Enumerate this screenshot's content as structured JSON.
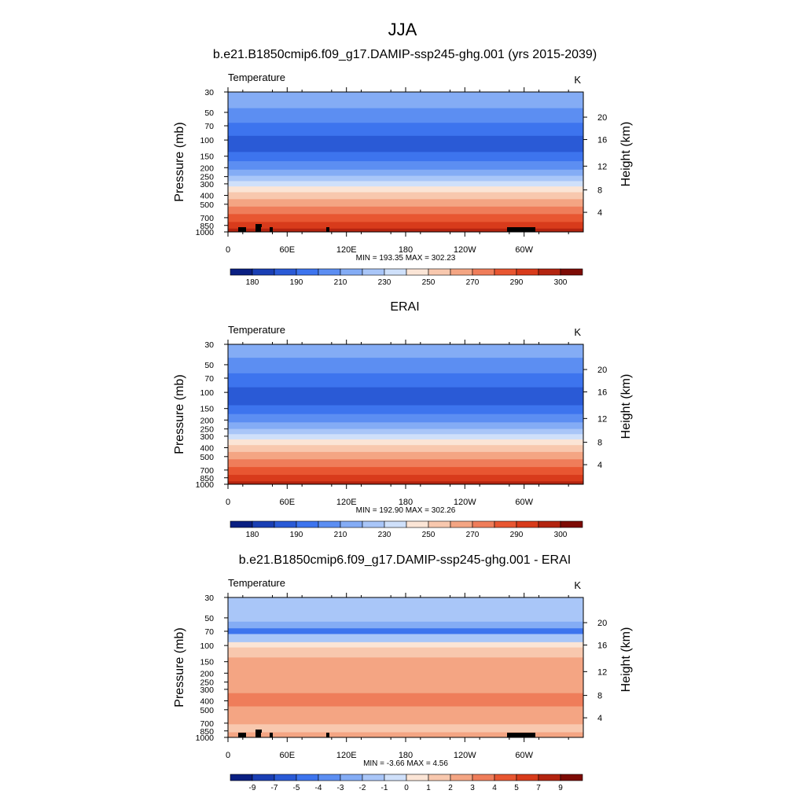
{
  "page": {
    "title": "JJA",
    "subtitles": [
      "b.e21.B1850cmip6.f09_g17.DAMIP-ssp245-ghg.001 (yrs 2015-2039)",
      "ERAI",
      "b.e21.B1850cmip6.f09_g17.DAMIP-ssp245-ghg.001 - ERAI"
    ]
  },
  "chart_data": [
    {
      "type": "heatmap",
      "title": "b.e21.B1850cmip6.f09_g17.DAMIP-ssp245-ghg.001 (yrs 2015-2039)",
      "left_label": "Temperature",
      "right_label": "K",
      "xlabel": "",
      "ylabel": "Pressure (mb)",
      "y2label": "Height (km)",
      "x_ticks": [
        "0",
        "60E",
        "120E",
        "180",
        "120W",
        "60W"
      ],
      "y_ticks": [
        "30",
        "50",
        "70",
        "100",
        "150",
        "200",
        "250",
        "300",
        "400",
        "500",
        "700",
        "850",
        "1000"
      ],
      "y2_ticks": [
        "20",
        "16",
        "12",
        "8",
        "4"
      ],
      "stats": "MIN = 193.35  MAX = 302.23",
      "colorbar_labels": [
        "180",
        "190",
        "210",
        "230",
        "250",
        "270",
        "290",
        "300"
      ],
      "colors": [
        "#0a1f82",
        "#1a3fb4",
        "#2a5ad6",
        "#3d74ee",
        "#5c8ef2",
        "#84acf5",
        "#a9c6f8",
        "#cfe0fa",
        "#fbe5d6",
        "#f8c8ae",
        "#f4a583",
        "#ef7d5a",
        "#e85631",
        "#d83b1b",
        "#b32410",
        "#7d0b05"
      ],
      "bands": [
        {
          "p_top": 30,
          "p_bot": 45,
          "color": "#84acf5"
        },
        {
          "p_top": 45,
          "p_bot": 65,
          "color": "#5c8ef2"
        },
        {
          "p_top": 65,
          "p_bot": 90,
          "color": "#3d74ee"
        },
        {
          "p_top": 90,
          "p_bot": 135,
          "color": "#2a5ad6"
        },
        {
          "p_top": 135,
          "p_bot": 170,
          "color": "#3d74ee"
        },
        {
          "p_top": 170,
          "p_bot": 210,
          "color": "#5c8ef2"
        },
        {
          "p_top": 210,
          "p_bot": 245,
          "color": "#84acf5"
        },
        {
          "p_top": 245,
          "p_bot": 280,
          "color": "#a9c6f8"
        },
        {
          "p_top": 280,
          "p_bot": 320,
          "color": "#cfe0fa"
        },
        {
          "p_top": 320,
          "p_bot": 370,
          "color": "#fbe5d6"
        },
        {
          "p_top": 370,
          "p_bot": 440,
          "color": "#f8c8ae"
        },
        {
          "p_top": 440,
          "p_bot": 530,
          "color": "#f4a583"
        },
        {
          "p_top": 530,
          "p_bot": 640,
          "color": "#ef7d5a"
        },
        {
          "p_top": 640,
          "p_bot": 780,
          "color": "#e85631"
        },
        {
          "p_top": 780,
          "p_bot": 920,
          "color": "#d83b1b"
        },
        {
          "p_top": 920,
          "p_bot": 1000,
          "color": "#b32410"
        }
      ]
    },
    {
      "type": "heatmap",
      "title": "ERAI",
      "left_label": "Temperature",
      "right_label": "K",
      "xlabel": "",
      "ylabel": "Pressure (mb)",
      "y2label": "Height (km)",
      "x_ticks": [
        "0",
        "60E",
        "120E",
        "180",
        "120W",
        "60W"
      ],
      "y_ticks": [
        "30",
        "50",
        "70",
        "100",
        "150",
        "200",
        "250",
        "300",
        "400",
        "500",
        "700",
        "850",
        "1000"
      ],
      "y2_ticks": [
        "20",
        "16",
        "12",
        "8",
        "4"
      ],
      "stats": "MIN = 192.90  MAX = 302.26",
      "colorbar_labels": [
        "180",
        "190",
        "210",
        "230",
        "250",
        "270",
        "290",
        "300"
      ],
      "colors": [
        "#0a1f82",
        "#1a3fb4",
        "#2a5ad6",
        "#3d74ee",
        "#5c8ef2",
        "#84acf5",
        "#a9c6f8",
        "#cfe0fa",
        "#fbe5d6",
        "#f8c8ae",
        "#f4a583",
        "#ef7d5a",
        "#e85631",
        "#d83b1b",
        "#b32410",
        "#7d0b05"
      ],
      "bands": [
        {
          "p_top": 30,
          "p_bot": 42,
          "color": "#84acf5"
        },
        {
          "p_top": 42,
          "p_bot": 62,
          "color": "#5c8ef2"
        },
        {
          "p_top": 62,
          "p_bot": 88,
          "color": "#3d74ee"
        },
        {
          "p_top": 88,
          "p_bot": 138,
          "color": "#2a5ad6"
        },
        {
          "p_top": 138,
          "p_bot": 172,
          "color": "#3d74ee"
        },
        {
          "p_top": 172,
          "p_bot": 212,
          "color": "#5c8ef2"
        },
        {
          "p_top": 212,
          "p_bot": 250,
          "color": "#84acf5"
        },
        {
          "p_top": 250,
          "p_bot": 285,
          "color": "#a9c6f8"
        },
        {
          "p_top": 285,
          "p_bot": 325,
          "color": "#cfe0fa"
        },
        {
          "p_top": 325,
          "p_bot": 375,
          "color": "#fbe5d6"
        },
        {
          "p_top": 375,
          "p_bot": 445,
          "color": "#f8c8ae"
        },
        {
          "p_top": 445,
          "p_bot": 535,
          "color": "#f4a583"
        },
        {
          "p_top": 535,
          "p_bot": 650,
          "color": "#ef7d5a"
        },
        {
          "p_top": 650,
          "p_bot": 790,
          "color": "#e85631"
        },
        {
          "p_top": 790,
          "p_bot": 930,
          "color": "#d83b1b"
        },
        {
          "p_top": 930,
          "p_bot": 1000,
          "color": "#b32410"
        }
      ]
    },
    {
      "type": "heatmap",
      "title": "b.e21.B1850cmip6.f09_g17.DAMIP-ssp245-ghg.001 - ERAI",
      "left_label": "Temperature",
      "right_label": "K",
      "xlabel": "",
      "ylabel": "Pressure (mb)",
      "y2label": "Height (km)",
      "x_ticks": [
        "0",
        "60E",
        "120E",
        "180",
        "120W",
        "60W"
      ],
      "y_ticks": [
        "30",
        "50",
        "70",
        "100",
        "150",
        "200",
        "250",
        "300",
        "400",
        "500",
        "700",
        "850",
        "1000"
      ],
      "y2_ticks": [
        "20",
        "16",
        "12",
        "8",
        "4"
      ],
      "stats": "MIN =  -3.66  MAX =   4.56",
      "colorbar_labels": [
        "-9",
        "-7",
        "-5",
        "-4",
        "-3",
        "-2",
        "-1",
        "0",
        "1",
        "2",
        "3",
        "4",
        "5",
        "7",
        "9"
      ],
      "colors": [
        "#0a1f82",
        "#1a3fb4",
        "#2a5ad6",
        "#3d74ee",
        "#5c8ef2",
        "#84acf5",
        "#a9c6f8",
        "#cfe0fa",
        "#fbe5d6",
        "#f8c8ae",
        "#f4a583",
        "#ef7d5a",
        "#e85631",
        "#d83b1b",
        "#b32410",
        "#7d0b05"
      ],
      "bands": [
        {
          "p_top": 30,
          "p_bot": 55,
          "color": "#a9c6f8"
        },
        {
          "p_top": 55,
          "p_bot": 65,
          "color": "#84acf5"
        },
        {
          "p_top": 65,
          "p_bot": 75,
          "color": "#3d74ee"
        },
        {
          "p_top": 75,
          "p_bot": 92,
          "color": "#a9c6f8"
        },
        {
          "p_top": 92,
          "p_bot": 105,
          "color": "#fbe5d6"
        },
        {
          "p_top": 105,
          "p_bot": 135,
          "color": "#f8c8ae"
        },
        {
          "p_top": 135,
          "p_bot": 330,
          "color": "#f4a583"
        },
        {
          "p_top": 330,
          "p_bot": 460,
          "color": "#ef7d5a"
        },
        {
          "p_top": 460,
          "p_bot": 720,
          "color": "#f4a583"
        },
        {
          "p_top": 720,
          "p_bot": 880,
          "color": "#f8c8ae"
        },
        {
          "p_top": 880,
          "p_bot": 1000,
          "color": "#f4a583"
        }
      ]
    }
  ]
}
